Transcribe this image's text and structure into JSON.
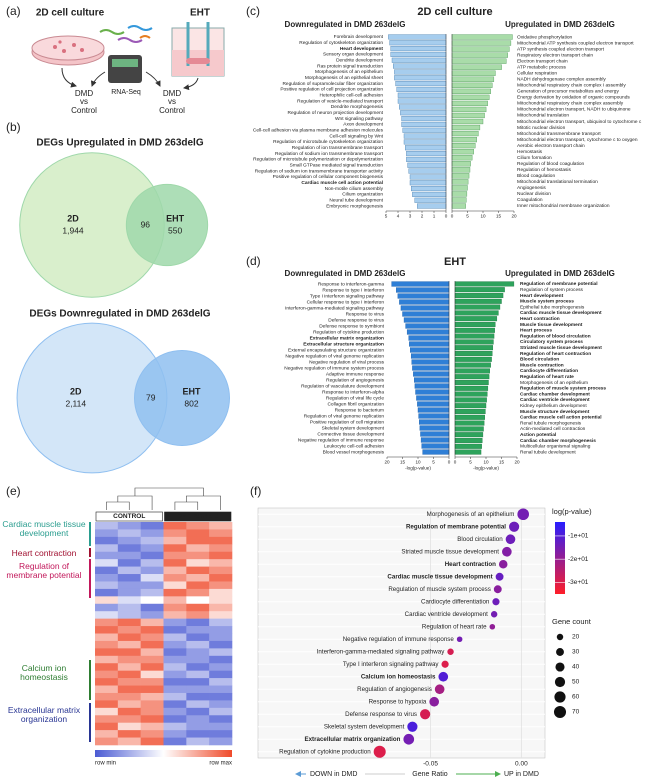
{
  "panel_labels": [
    "(a)",
    "(b)",
    "(c)",
    "(d)",
    "(e)",
    "(f)"
  ],
  "figure_a": {
    "left_label": "2D cell culture",
    "right_label": "EHT",
    "center_label": "RNA-Seq",
    "outcome_labels": [
      "DMD vs Control",
      "DMD vs Control"
    ]
  },
  "chart_data": [
    {
      "type": "venn",
      "title": "DEGs Upregulated in DMD 263delG",
      "sets": [
        "2D",
        "EHT"
      ],
      "values": [
        1944,
        96,
        550
      ],
      "value_labels": [
        "1,944",
        "96",
        "550"
      ],
      "colors": [
        "#d9efcc",
        "#9fd8aa"
      ]
    },
    {
      "type": "venn",
      "title": "DEGs Downregulated in DMD 263delG",
      "sets": [
        "2D",
        "EHT"
      ],
      "values": [
        2114,
        79,
        802
      ],
      "value_labels": [
        "2,114",
        "79",
        "802"
      ],
      "colors": [
        "#d3e6f8",
        "#8fbff0"
      ]
    },
    {
      "type": "bar",
      "title": "2D cell culture",
      "subtitle": "Downregulated in DMD 263delG",
      "color": "#a6cdee",
      "stroke": "#4a7fb0",
      "categories": [
        "Forebrain development",
        "Regulation of cytoskeleton organization",
        "Heart development",
        "Sensory organ development",
        "Dendrite development",
        "Ras protein signal transduction",
        "Morphogenesis of an epithelium",
        "Morphogenesis of an epithelial sheet",
        "Regulation of supramolecular fiber organization",
        "Positive regulation of cell projection organization",
        "Heterophilic cell-cell adhesion",
        "Regulation of vesicle-mediated transport",
        "Dendrite morphogenesis",
        "Regulation of neuron projection development",
        "Wnt signaling pathway",
        "Axon development",
        "Cell-cell adhesion via plasma membrane adhesion molecules",
        "Cell-cell signaling by Wnt",
        "Regulation of microtubule cytoskeleton organization",
        "Regulation of ion transmembrane transport",
        "Regulation of sodium ion transmembrane transport",
        "Regulation of microtubule polymerization or depolymerization",
        "Small GTPase mediated signal transduction",
        "Regulation of sodium ion transmembrane transporter activity",
        "Positive regulation of cellular component biogenesis",
        "Cardiac muscle cell action potential",
        "Non-motile cilium assembly",
        "Cilium organization",
        "Neural tube development",
        "Embryonic morphogenesis"
      ],
      "values": [
        4.8,
        4.7,
        4.6,
        4.6,
        4.5,
        4.4,
        4.3,
        4.3,
        4.2,
        4.1,
        4.0,
        4.0,
        3.9,
        3.8,
        3.7,
        3.7,
        3.6,
        3.5,
        3.5,
        3.4,
        3.3,
        3.3,
        3.2,
        3.1,
        3.0,
        3.0,
        2.9,
        2.8,
        2.6,
        2.4
      ],
      "bold_indices": [
        2,
        25
      ],
      "xlim": [
        0,
        5
      ],
      "xticks": [
        0,
        1,
        2,
        3,
        4,
        5
      ]
    },
    {
      "type": "bar",
      "subtitle": "Upregulated in DMD 263delG",
      "color": "#a9dca9",
      "stroke": "#4d9a57",
      "categories": [
        "Oxidative phosphorylation",
        "Mitochondrial ATP synthesis coupled electron transport",
        "ATP synthesis coupled electron transport",
        "Respiratory electron transport chain",
        "Electron transport chain",
        "ATP metabolic process",
        "Cellular respiration",
        "NADH dehydrogenase complex assembly",
        "Mitochondrial respiratory chain complex I assembly",
        "Generation of precursor metabolites and energy",
        "Energy derivation by oxidation of organic compounds",
        "Mitochondrial respiratory chain complex assembly",
        "Mitochondrial electron transport, NADH to ubiquinone",
        "Mitochondrial translation",
        "Mitochondrial electron transport, ubiquinol to cytochrome c",
        "Mitotic nuclear division",
        "Mitochondrial transmembrane transport",
        "Mitochondrial electron transport, cytochrome c to oxygen",
        "Aerobic electron transport chain",
        "Hemostasis",
        "Cilium formation",
        "Regulation of blood coagulation",
        "Regulation of hemostasis",
        "Blood coagulation",
        "Mitochondrial translational termination",
        "Angiogenesis",
        "Nuclear division",
        "Coagulation",
        "Inner mitochondrial membrane organization"
      ],
      "values": [
        19.5,
        19,
        18.5,
        18,
        17.5,
        16,
        14,
        13.5,
        13,
        12.5,
        12,
        11.5,
        11,
        10.5,
        10,
        9,
        8.5,
        8,
        7.5,
        7,
        6.5,
        6,
        5.8,
        5.5,
        5.2,
        5,
        4.8,
        4.6,
        4.4
      ],
      "xlim": [
        0,
        20
      ],
      "xticks": [
        0,
        5,
        10,
        15,
        20
      ]
    },
    {
      "type": "bar",
      "title": "EHT",
      "subtitle": "Downregulated in DMD 263delG",
      "xlabel": "-log(p-value)",
      "color": "#2f7fd6",
      "stroke": "#1c5ea8",
      "categories": [
        "Response to interferon-gamma",
        "Response to type I interferon",
        "Type I interferon signaling pathway",
        "Cellular response to type I interferon",
        "Interferon-gamma-mediated signaling pathway",
        "Response to virus",
        "Defense response to virus",
        "Defense response to symbiont",
        "Regulation of cytokine production",
        "Extracellular matrix organization",
        "Extracellular structure organization",
        "External encapsulating structure organization",
        "Negative regulation of viral genome replication",
        "Negative regulation of viral process",
        "Negative regulation of immune system process",
        "Adaptive immune response",
        "Regulation of angiogenesis",
        "Regulation of vasculature development",
        "Response to interferon-alpha",
        "Regulation of viral life cycle",
        "Collagen fibril organization",
        "Response to bacterium",
        "Regulation of viral genome replication",
        "Positive regulation of cell migration",
        "Skeletal system development",
        "Connective tissue development",
        "Negative regulation of immune response",
        "Leukocyte cell-cell adhesion",
        "Blood vessel morphogenesis"
      ],
      "values": [
        18.5,
        17,
        16.5,
        16,
        15.5,
        15,
        14.5,
        14,
        13.5,
        13,
        12.8,
        12.5,
        12.2,
        12,
        11.8,
        11.5,
        11.2,
        11,
        10.8,
        10.5,
        10.2,
        10,
        9.8,
        9.6,
        9.4,
        9.2,
        9,
        8.8,
        8.5
      ],
      "bold_indices": [
        9,
        10
      ],
      "xlim": [
        0,
        20
      ],
      "xticks": [
        0,
        5,
        10,
        15,
        20
      ]
    },
    {
      "type": "bar",
      "subtitle": "Upregulated in DMD 263delG",
      "xlabel": "-log(p-value)",
      "color": "#2ea35c",
      "stroke": "#1d7a42",
      "categories": [
        "Regulation of membrane potential",
        "Regulation of system process",
        "Heart development",
        "Muscle system process",
        "Epithelial tube morphogenesis",
        "Cardiac muscle tissue development",
        "Heart contraction",
        "Muscle tissue development",
        "Heart process",
        "Regulation of blood circulation",
        "Circulatory system process",
        "Striated muscle tissue development",
        "Regulation of heart contraction",
        "Blood circulation",
        "Muscle contraction",
        "Cardiocyte differentiation",
        "Regulation of heart rate",
        "Morphogenesis of an epithelium",
        "Regulation of muscle system process",
        "Cardiac chamber development",
        "Cardiac ventricle development",
        "Kidney epithelium development",
        "Muscle structure development",
        "Cardiac muscle cell action potential",
        "Renal tubule morphogenesis",
        "Actin-mediated cell contraction",
        "Action potential",
        "Cardiac chamber morphogenesis",
        "Multicellular organismal signaling",
        "Renal tubule development"
      ],
      "values": [
        19,
        16,
        15.5,
        15,
        14.5,
        14,
        13.5,
        13,
        12.8,
        12.6,
        12.4,
        12.2,
        12,
        11.8,
        11.5,
        11.2,
        11,
        10.8,
        10.6,
        10.4,
        10.2,
        10,
        9.8,
        9.6,
        9.4,
        9.2,
        9,
        8.8,
        8.6,
        8.4
      ],
      "bold_indices": [
        0,
        2,
        3,
        5,
        6,
        7,
        8,
        9,
        10,
        11,
        12,
        13,
        14,
        15,
        16,
        18,
        19,
        20,
        22,
        23,
        26,
        27
      ],
      "xlim": [
        0,
        20
      ],
      "xticks": [
        0,
        5,
        10,
        15,
        20
      ]
    },
    {
      "type": "heatmap",
      "groups": [
        "CONTROL",
        "DMD 263delG"
      ],
      "legend_labels": [
        "row min",
        "row max"
      ],
      "annotations": [
        {
          "text": "Cardiac muscle tissue development",
          "color": "#2a9d8f"
        },
        {
          "text": "Heart contraction",
          "color": "#a01030"
        },
        {
          "text": "Regulation of membrane potential",
          "color": "#c2185b"
        },
        {
          "text": "Calcium ion homeostasis",
          "color": "#2e7d32"
        },
        {
          "text": "Extracellular matrix organization",
          "color": "#283593"
        }
      ],
      "values": [
        [
          0.3,
          0.2,
          0.1,
          0.9,
          0.8,
          0.7
        ],
        [
          0.2,
          0.3,
          0.2,
          0.8,
          0.9,
          0.8
        ],
        [
          0.1,
          0.2,
          0.3,
          0.7,
          0.9,
          0.9
        ],
        [
          0.3,
          0.1,
          0.2,
          0.9,
          0.7,
          0.8
        ],
        [
          0.2,
          0.2,
          0.1,
          0.8,
          0.8,
          0.9
        ],
        [
          0.4,
          0.1,
          0.3,
          0.9,
          0.6,
          0.7
        ],
        [
          0.1,
          0.3,
          0.2,
          0.7,
          0.9,
          0.8
        ],
        [
          0.2,
          0.1,
          0.4,
          0.8,
          0.7,
          0.9
        ],
        [
          0.3,
          0.2,
          0.2,
          0.6,
          0.9,
          0.8
        ],
        [
          0.1,
          0.2,
          0.3,
          0.9,
          0.8,
          0.6
        ],
        [
          0.6,
          0.4,
          0.5,
          0.7,
          0.5,
          0.6
        ],
        [
          0.2,
          0.3,
          0.1,
          0.8,
          0.9,
          0.7
        ],
        [
          0.4,
          0.3,
          0.2,
          0.7,
          0.8,
          0.6
        ],
        [
          0.8,
          0.9,
          0.7,
          0.2,
          0.1,
          0.3
        ],
        [
          0.9,
          0.8,
          0.9,
          0.1,
          0.2,
          0.2
        ],
        [
          0.7,
          0.9,
          0.8,
          0.3,
          0.1,
          0.2
        ],
        [
          0.8,
          0.7,
          0.9,
          0.2,
          0.3,
          0.1
        ],
        [
          0.9,
          0.9,
          0.7,
          0.1,
          0.2,
          0.3
        ],
        [
          0.7,
          0.8,
          0.8,
          0.2,
          0.2,
          0.1
        ],
        [
          0.9,
          0.7,
          0.9,
          0.3,
          0.1,
          0.2
        ],
        [
          0.8,
          0.9,
          0.6,
          0.2,
          0.3,
          0.1
        ],
        [
          0.9,
          0.8,
          0.8,
          0.1,
          0.1,
          0.3
        ],
        [
          0.7,
          0.9,
          0.9,
          0.2,
          0.2,
          0.2
        ],
        [
          0.8,
          0.8,
          0.7,
          0.3,
          0.1,
          0.1
        ],
        [
          0.9,
          0.7,
          0.8,
          0.1,
          0.3,
          0.2
        ],
        [
          0.6,
          0.9,
          0.8,
          0.2,
          0.1,
          0.3
        ],
        [
          0.8,
          0.8,
          0.9,
          0.1,
          0.2,
          0.1
        ],
        [
          0.9,
          0.6,
          0.7,
          0.3,
          0.2,
          0.2
        ],
        [
          0.7,
          0.9,
          0.8,
          0.2,
          0.1,
          0.1
        ],
        [
          0.8,
          0.7,
          0.9,
          0.1,
          0.3,
          0.2
        ]
      ]
    },
    {
      "type": "dot",
      "xlabel": "Gene Ratio",
      "annotations": [
        "DOWN in DMD",
        "UP in DMD"
      ],
      "categories": [
        "Morphogenesis of an epithelium",
        "Regulation of membrane potential",
        "Blood circulation",
        "Striated muscle tissue development",
        "Heart contraction",
        "Cardiac muscle tissue development",
        "Regulation of muscle system process",
        "Cardiocyte differentiation",
        "Cardiac ventricle development",
        "Regulation of heart rate",
        "Negative regulation of immune response",
        "Interferon-gamma-mediated signaling pathway",
        "Type I interferon signaling pathway",
        "Calcium ion homeostasis",
        "Regulation of angiogenesis",
        "Response to hypoxia",
        "Defense response to virus",
        "Skeletal system development",
        "Extracellular matrix organization",
        "Regulation of cytokine production"
      ],
      "values": [
        0.001,
        -0.004,
        -0.006,
        -0.008,
        -0.01,
        -0.012,
        -0.013,
        -0.014,
        -0.015,
        -0.016,
        -0.034,
        -0.039,
        -0.042,
        -0.043,
        -0.045,
        -0.048,
        -0.053,
        -0.06,
        -0.062,
        -0.078
      ],
      "color_values": [
        -15,
        -14,
        -14,
        -17,
        -18,
        -13,
        -18,
        -14,
        -15,
        -19,
        -15,
        -29,
        -30,
        -10,
        -22,
        -18,
        -29,
        -9,
        -15,
        -30
      ],
      "sizes": [
        65,
        50,
        45,
        45,
        35,
        30,
        30,
        25,
        20,
        15,
        15,
        20,
        25,
        45,
        45,
        45,
        50,
        50,
        55,
        70
      ],
      "highlight": [
        {
          "index": 1,
          "color": "#c2185b"
        },
        {
          "index": 4,
          "color": "#a01030"
        },
        {
          "index": 5,
          "color": "#1a9a7a"
        },
        {
          "index": 13,
          "color": "#1e8a3c"
        },
        {
          "index": 18,
          "color": "#2a2a8a"
        }
      ],
      "xlim": [
        -0.145,
        0.013
      ],
      "xticks": [
        -0.05,
        {
          "value": 0,
          "label": "0.00"
        }
      ],
      "color_title": "log(p-value)",
      "color_lim": [
        -35,
        -4
      ],
      "color_ticks": [
        {
          "value": -10,
          "label": "-1e+01"
        },
        {
          "value": -20,
          "label": "-2e+01"
        },
        {
          "value": -30,
          "label": "-3e+01"
        }
      ],
      "size_title": "Gene count",
      "size_ticks": [
        20,
        30,
        40,
        50,
        60,
        70
      ]
    }
  ]
}
